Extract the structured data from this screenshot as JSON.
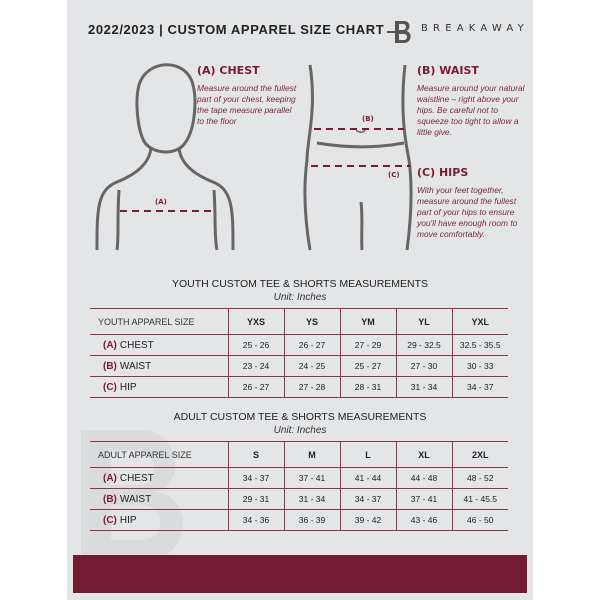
{
  "header": {
    "title": "2022/2023 | CUSTOM APPAREL SIZE CHART",
    "brand": "BREAKAWAY",
    "logo_letter": "B"
  },
  "measures": {
    "chest": {
      "title": "(A) CHEST",
      "desc": "Measure around the fullest part of your chest, keeping the tape measure parallel to the floor",
      "marker": "(A)"
    },
    "waist": {
      "title": "(B) WAIST",
      "desc": "Measure around your natural waistline – right above your hips. Be careful not to squeeze too tight to allow a little give.",
      "marker": "(B)"
    },
    "hips": {
      "title": "(C) HIPS",
      "desc": "With your feet together, measure around the fullest part of your hips to ensure you'll have enough room to move comfortably.",
      "marker": "(C)"
    }
  },
  "youth": {
    "title": "YOUTH CUSTOM TEE & SHORTS MEASUREMENTS",
    "unit": "Unit: Inches",
    "headers": [
      "YOUTH APPAREL SIZE",
      "YXS",
      "YS",
      "YM",
      "YL",
      "YXL"
    ],
    "rows": [
      {
        "letter": "(A)",
        "label": "CHEST",
        "values": [
          "25 - 26",
          "26 - 27",
          "27 - 29",
          "29 - 32.5",
          "32.5 - 35.5"
        ]
      },
      {
        "letter": "(B)",
        "label": "WAIST",
        "values": [
          "23 - 24",
          "24 - 25",
          "25 - 27",
          "27 - 30",
          "30 - 33"
        ]
      },
      {
        "letter": "(C)",
        "label": "HIP",
        "values": [
          "26 - 27",
          "27 - 28",
          "28 - 31",
          "31 - 34",
          "34 - 37"
        ]
      }
    ]
  },
  "adult": {
    "title": "ADULT CUSTOM TEE & SHORTS MEASUREMENTS",
    "unit": "Unit: Inches",
    "headers": [
      "ADULT APPAREL SIZE",
      "S",
      "M",
      "L",
      "XL",
      "2XL"
    ],
    "rows": [
      {
        "letter": "(A)",
        "label": "CHEST",
        "values": [
          "34 - 37",
          "37 - 41",
          "41 - 44",
          "44 - 48",
          "48 - 52"
        ]
      },
      {
        "letter": "(B)",
        "label": "WAIST",
        "values": [
          "29 - 31",
          "31 - 34",
          "34 - 37",
          "37 - 41",
          "41 - 45.5"
        ]
      },
      {
        "letter": "(C)",
        "label": "HIP",
        "values": [
          "34 - 36",
          "36 - 39",
          "39 - 42",
          "43 - 46",
          "46 - 50"
        ]
      }
    ]
  },
  "colors": {
    "accent": "#731c31",
    "background": "#e4e5e7"
  }
}
